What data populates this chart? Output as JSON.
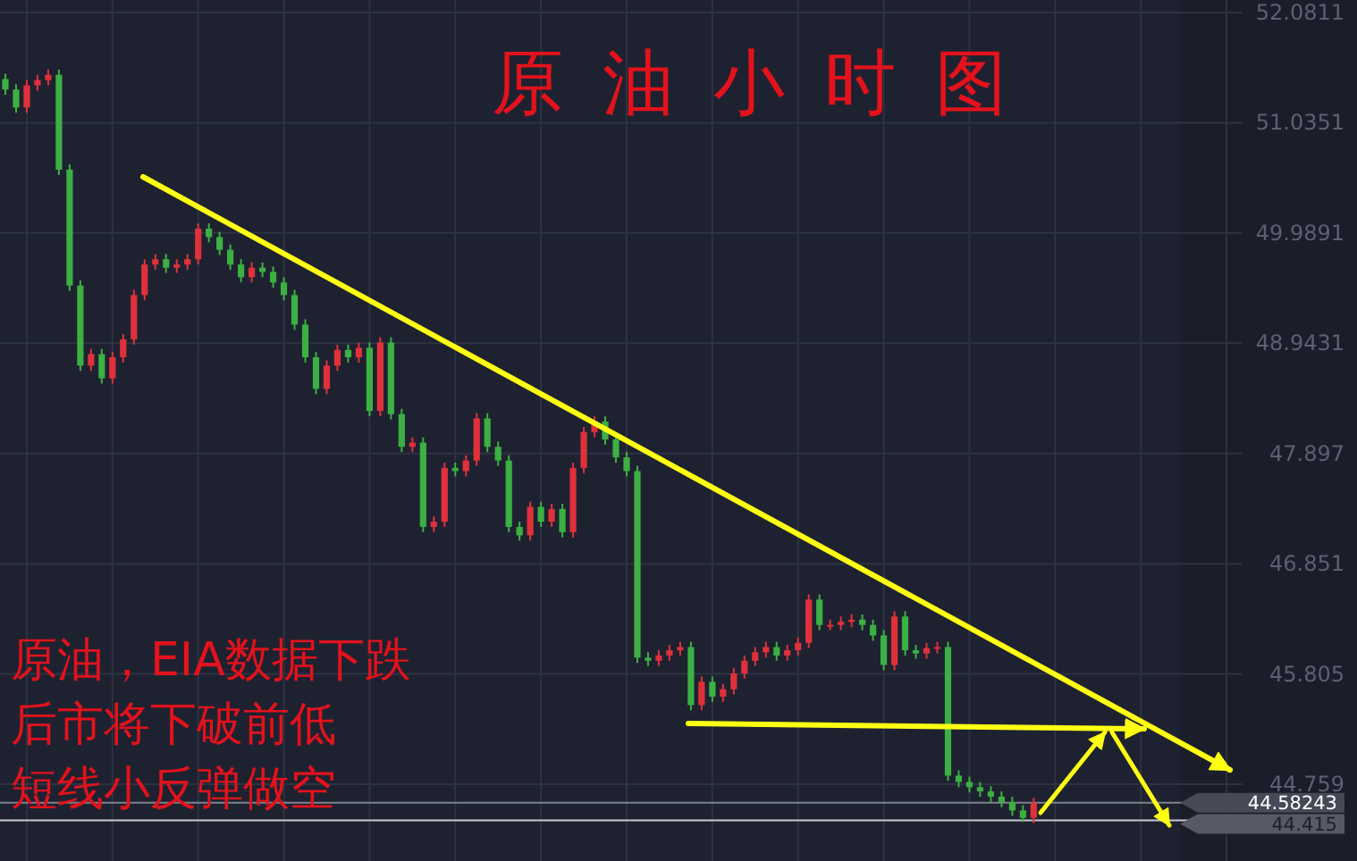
{
  "chart_data": {
    "type": "candlestick",
    "title": "原油小时图",
    "categories": [
      null,
      null,
      null,
      null,
      null,
      null,
      null,
      null,
      null,
      null,
      null,
      null,
      null,
      null,
      null,
      null,
      null,
      null,
      null,
      null,
      null,
      null,
      null,
      null,
      null,
      null,
      null,
      null,
      null,
      null,
      null,
      null,
      null,
      null,
      null,
      null,
      null,
      null,
      null,
      null,
      null,
      null,
      null,
      null,
      null,
      null,
      null,
      null,
      null,
      null,
      null,
      null,
      null,
      null,
      null,
      null,
      null,
      null,
      null,
      null,
      null,
      null,
      null,
      null,
      null,
      null,
      null,
      null,
      null,
      null,
      null,
      null,
      null,
      null,
      null,
      null,
      null,
      null,
      null,
      null,
      null,
      null,
      null,
      null,
      null,
      null,
      null,
      null,
      null,
      null,
      null,
      null,
      null,
      null,
      null,
      null,
      null,
      null,
      null,
      null,
      null,
      null,
      null,
      null,
      null,
      null,
      null,
      null,
      null,
      null,
      null,
      null,
      null,
      null,
      null,
      null
    ],
    "ohlc": [
      [
        51.45,
        51.5,
        51.3,
        51.35
      ],
      [
        51.35,
        51.4,
        51.13,
        51.18
      ],
      [
        51.18,
        51.44,
        51.13,
        51.39
      ],
      [
        51.39,
        51.49,
        51.34,
        51.44
      ],
      [
        51.44,
        51.54,
        51.39,
        51.49
      ],
      [
        51.49,
        51.54,
        50.54,
        50.59
      ],
      [
        50.59,
        50.64,
        49.44,
        49.49
      ],
      [
        49.49,
        49.54,
        48.68,
        48.73
      ],
      [
        48.73,
        48.89,
        48.68,
        48.84
      ],
      [
        48.84,
        48.89,
        48.56,
        48.61
      ],
      [
        48.61,
        48.86,
        48.56,
        48.81
      ],
      [
        48.81,
        49.03,
        48.76,
        48.98
      ],
      [
        48.98,
        49.45,
        48.93,
        49.4
      ],
      [
        49.4,
        49.74,
        49.35,
        49.69
      ],
      [
        49.69,
        49.79,
        49.64,
        49.74
      ],
      [
        49.74,
        49.79,
        49.61,
        49.66
      ],
      [
        49.66,
        49.74,
        49.61,
        49.69
      ],
      [
        49.69,
        49.79,
        49.64,
        49.74
      ],
      [
        49.74,
        50.08,
        49.69,
        50.03
      ],
      [
        50.03,
        50.08,
        49.9,
        49.95
      ],
      [
        49.95,
        50.0,
        49.78,
        49.83
      ],
      [
        49.83,
        49.88,
        49.64,
        49.69
      ],
      [
        49.69,
        49.74,
        49.52,
        49.57
      ],
      [
        49.57,
        49.71,
        49.52,
        49.66
      ],
      [
        49.66,
        49.71,
        49.57,
        49.62
      ],
      [
        49.62,
        49.67,
        49.47,
        49.52
      ],
      [
        49.52,
        49.57,
        49.35,
        49.4
      ],
      [
        49.4,
        49.45,
        49.07,
        49.12
      ],
      [
        49.12,
        49.17,
        48.76,
        48.81
      ],
      [
        48.81,
        48.86,
        48.46,
        48.51
      ],
      [
        48.51,
        48.78,
        48.46,
        48.73
      ],
      [
        48.73,
        48.93,
        48.68,
        48.88
      ],
      [
        48.88,
        48.93,
        48.76,
        48.81
      ],
      [
        48.81,
        48.95,
        48.76,
        48.9
      ],
      [
        48.9,
        48.95,
        48.25,
        48.3
      ],
      [
        48.3,
        49.0,
        48.25,
        48.95
      ],
      [
        48.95,
        49.0,
        48.22,
        48.27
      ],
      [
        48.27,
        48.32,
        47.91,
        47.96
      ],
      [
        47.96,
        48.05,
        47.91,
        48.0
      ],
      [
        48.0,
        48.05,
        47.15,
        47.2
      ],
      [
        47.2,
        47.3,
        47.15,
        47.25
      ],
      [
        47.25,
        47.81,
        47.2,
        47.76
      ],
      [
        47.76,
        47.81,
        47.68,
        47.73
      ],
      [
        47.73,
        47.88,
        47.68,
        47.83
      ],
      [
        47.83,
        48.28,
        47.78,
        48.23
      ],
      [
        48.23,
        48.28,
        47.91,
        47.96
      ],
      [
        47.96,
        48.01,
        47.78,
        47.83
      ],
      [
        47.83,
        47.88,
        47.15,
        47.2
      ],
      [
        47.2,
        47.25,
        47.07,
        47.12
      ],
      [
        47.12,
        47.44,
        47.07,
        47.39
      ],
      [
        47.39,
        47.44,
        47.2,
        47.25
      ],
      [
        47.25,
        47.42,
        47.2,
        47.37
      ],
      [
        47.37,
        47.42,
        47.1,
        47.15
      ],
      [
        47.15,
        47.81,
        47.1,
        47.76
      ],
      [
        47.76,
        48.15,
        47.71,
        48.1
      ],
      [
        48.1,
        48.25,
        48.05,
        48.2
      ],
      [
        48.2,
        48.25,
        47.98,
        48.03
      ],
      [
        48.03,
        48.08,
        47.81,
        47.86
      ],
      [
        47.86,
        47.91,
        47.68,
        47.73
      ],
      [
        47.73,
        47.78,
        45.91,
        45.96
      ],
      [
        45.96,
        46.01,
        45.88,
        45.93
      ],
      [
        45.93,
        46.03,
        45.88,
        45.98
      ],
      [
        45.98,
        46.08,
        45.93,
        46.03
      ],
      [
        46.03,
        46.11,
        45.98,
        46.06
      ],
      [
        46.06,
        46.11,
        45.46,
        45.51
      ],
      [
        45.51,
        45.78,
        45.46,
        45.73
      ],
      [
        45.73,
        45.78,
        45.54,
        45.59
      ],
      [
        45.59,
        45.71,
        45.54,
        45.66
      ],
      [
        45.66,
        45.86,
        45.61,
        45.81
      ],
      [
        45.81,
        45.98,
        45.76,
        45.93
      ],
      [
        45.93,
        46.06,
        45.88,
        46.01
      ],
      [
        46.01,
        46.11,
        45.96,
        46.06
      ],
      [
        46.06,
        46.11,
        45.93,
        45.98
      ],
      [
        45.98,
        46.08,
        45.93,
        46.03
      ],
      [
        46.03,
        46.15,
        45.98,
        46.1
      ],
      [
        46.1,
        46.56,
        46.05,
        46.51
      ],
      [
        46.51,
        46.56,
        46.22,
        46.27
      ],
      [
        46.27,
        46.32,
        46.22,
        46.27
      ],
      [
        46.27,
        46.35,
        46.22,
        46.3
      ],
      [
        46.3,
        46.37,
        46.25,
        46.32
      ],
      [
        46.32,
        46.37,
        46.22,
        46.27
      ],
      [
        46.27,
        46.32,
        46.12,
        46.17
      ],
      [
        46.17,
        46.22,
        45.84,
        45.89
      ],
      [
        45.89,
        46.4,
        45.84,
        46.35
      ],
      [
        46.35,
        46.4,
        45.98,
        46.03
      ],
      [
        46.03,
        46.08,
        45.95,
        46.0
      ],
      [
        46.0,
        46.1,
        45.95,
        46.05
      ],
      [
        46.05,
        46.11,
        46.0,
        46.06
      ],
      [
        46.06,
        46.11,
        44.79,
        44.84
      ],
      [
        44.84,
        44.89,
        44.73,
        44.78
      ],
      [
        44.78,
        44.83,
        44.68,
        44.73
      ],
      [
        44.73,
        44.78,
        44.64,
        44.69
      ],
      [
        44.69,
        44.74,
        44.59,
        44.64
      ],
      [
        44.64,
        44.69,
        44.54,
        44.59
      ],
      [
        44.59,
        44.64,
        44.46,
        44.51
      ],
      [
        44.51,
        44.56,
        44.4,
        44.44
      ],
      [
        44.44,
        44.63,
        44.39,
        44.58
      ],
      null,
      null,
      null,
      null,
      null,
      null,
      null,
      null,
      null,
      null,
      null,
      null,
      null,
      null,
      null,
      null,
      null,
      null,
      null
    ],
    "ylim": [
      44.03,
      52.2
    ],
    "yticks": [
      44.759,
      45.805,
      46.851,
      47.897,
      48.9431,
      49.9891,
      51.0351,
      52.0811
    ],
    "grid": true,
    "ref_lines": [
      {
        "axis": "y",
        "value": 44.415,
        "label": "44.415",
        "color": "#c8cbd2"
      },
      {
        "axis": "y",
        "value": 44.58243,
        "label": "44.58243",
        "color": "#7d828e"
      }
    ],
    "annotations": [
      "原油，EIA数据下跌",
      "后市将下破前低",
      "短线小反弹做空"
    ]
  }
}
